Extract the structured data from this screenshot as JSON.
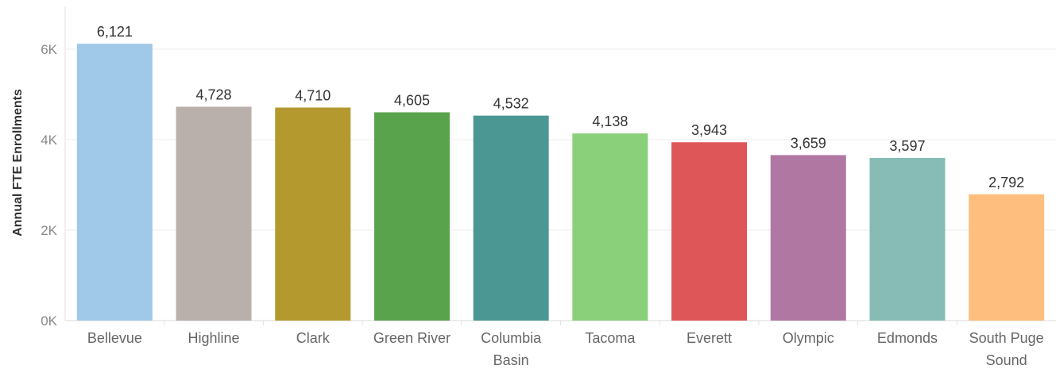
{
  "chart_data": {
    "type": "bar",
    "title": "",
    "xlabel": "",
    "ylabel": "Annual FTE Enrollments",
    "ylim": [
      0,
      6500
    ],
    "yticks": [
      0,
      2000,
      4000,
      6000
    ],
    "ytick_labels": [
      "0K",
      "2K",
      "4K",
      "6K"
    ],
    "grid": true,
    "categories": [
      [
        "Bellevue"
      ],
      [
        "Highline"
      ],
      [
        "Clark"
      ],
      [
        "Green River"
      ],
      [
        "Columbia",
        "Basin"
      ],
      [
        "Tacoma"
      ],
      [
        "Everett"
      ],
      [
        "Olympic"
      ],
      [
        "Edmonds"
      ],
      [
        "South Puge",
        "Sound"
      ]
    ],
    "values": [
      6121,
      4728,
      4710,
      4605,
      4532,
      4138,
      3943,
      3659,
      3597,
      2792
    ],
    "value_labels": [
      "6,121",
      "4,728",
      "4,710",
      "4,605",
      "4,532",
      "4,138",
      "3,943",
      "3,659",
      "3,597",
      "2,792"
    ],
    "colors": [
      "#a0c8e8",
      "#b9b0ac",
      "#b4992e",
      "#59a34c",
      "#4b9794",
      "#8ad07b",
      "#df5658",
      "#b177a3",
      "#86bcb5",
      "#febe7e"
    ]
  }
}
